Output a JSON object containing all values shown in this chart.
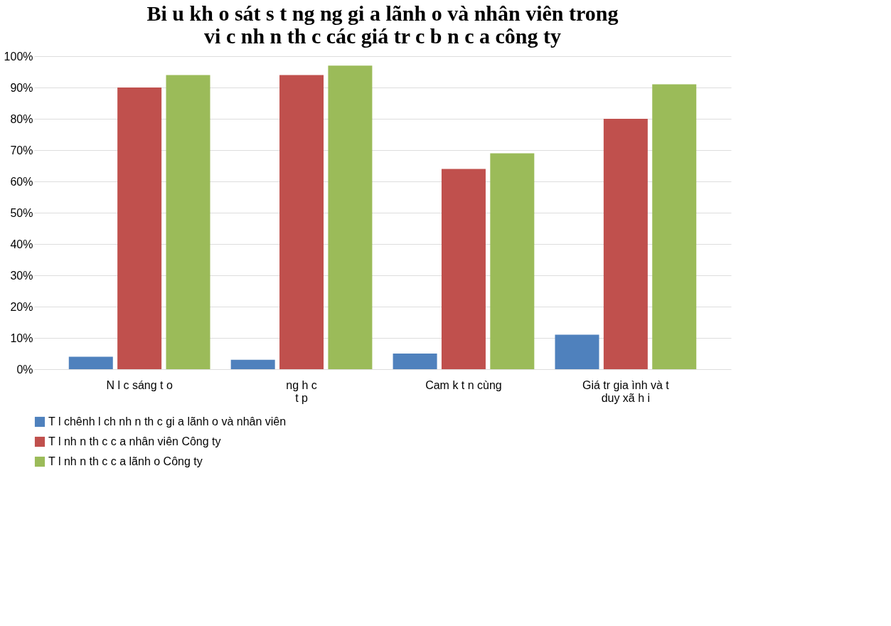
{
  "chart_data": {
    "type": "bar",
    "title": "Bi u     kh o sát s   t     ng     ng gi   a lãnh     o và nhân viên trong\nvi  c nh   n th   c các giá tr   c    b   n c   a công ty",
    "categories": [
      "N   l   c sáng t   o",
      "ng h   c\nt   p",
      "Cam k   t     n cùng",
      "Giá tr  gia   ình và t\nduy xã h   i"
    ],
    "series": [
      {
        "name": "T    l     chênh l   ch nh   n th   c gi   a lãnh      o và nhân viên",
        "color": "#4f81bd",
        "values": [
          4,
          3,
          5,
          11
        ]
      },
      {
        "name": "T    l     nh   n th   c c   a nhân viên Công ty",
        "color": "#c0504d",
        "values": [
          90,
          94,
          64,
          80
        ]
      },
      {
        "name": "T    l     nh   n th   c c   a lãnh      o Công ty",
        "color": "#9bbb59",
        "values": [
          94,
          97,
          69,
          91
        ]
      }
    ],
    "ylim": [
      0,
      100
    ],
    "yticks": [
      {
        "value": 0,
        "label": "0%"
      },
      {
        "value": 10,
        "label": "10%"
      },
      {
        "value": 20,
        "label": "20%"
      },
      {
        "value": 30,
        "label": "30%"
      },
      {
        "value": 40,
        "label": "40%"
      },
      {
        "value": 50,
        "label": "50%"
      },
      {
        "value": 60,
        "label": "60%"
      },
      {
        "value": 70,
        "label": "70%"
      },
      {
        "value": 80,
        "label": "80%"
      },
      {
        "value": 90,
        "label": "90%"
      },
      {
        "value": 100,
        "label": "100%"
      }
    ],
    "grid": true,
    "legend": "bottom"
  }
}
